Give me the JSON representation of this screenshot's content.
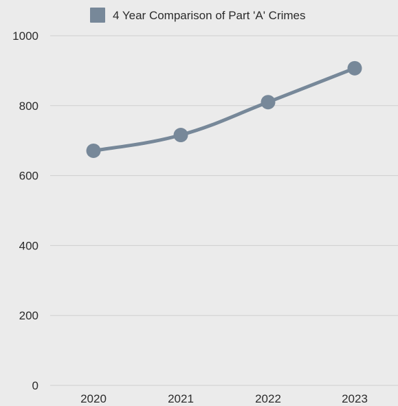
{
  "chart_data": {
    "type": "line",
    "categories": [
      "2020",
      "2021",
      "2022",
      "2023"
    ],
    "series": [
      {
        "name": "4 Year Comparison of Part 'A' Crimes",
        "values": [
          671,
          716,
          810,
          907
        ],
        "color": "#778899"
      }
    ],
    "ylim": [
      0,
      1000
    ],
    "yticks": [
      0,
      200,
      400,
      600,
      800,
      1000
    ],
    "title": "",
    "xlabel": "",
    "ylabel": "",
    "grid": true,
    "legend": "top",
    "colors": {
      "background": "#ebebeb",
      "grid": "#cfcfcf",
      "series": "#778899",
      "text": "#2b2b2b"
    }
  }
}
